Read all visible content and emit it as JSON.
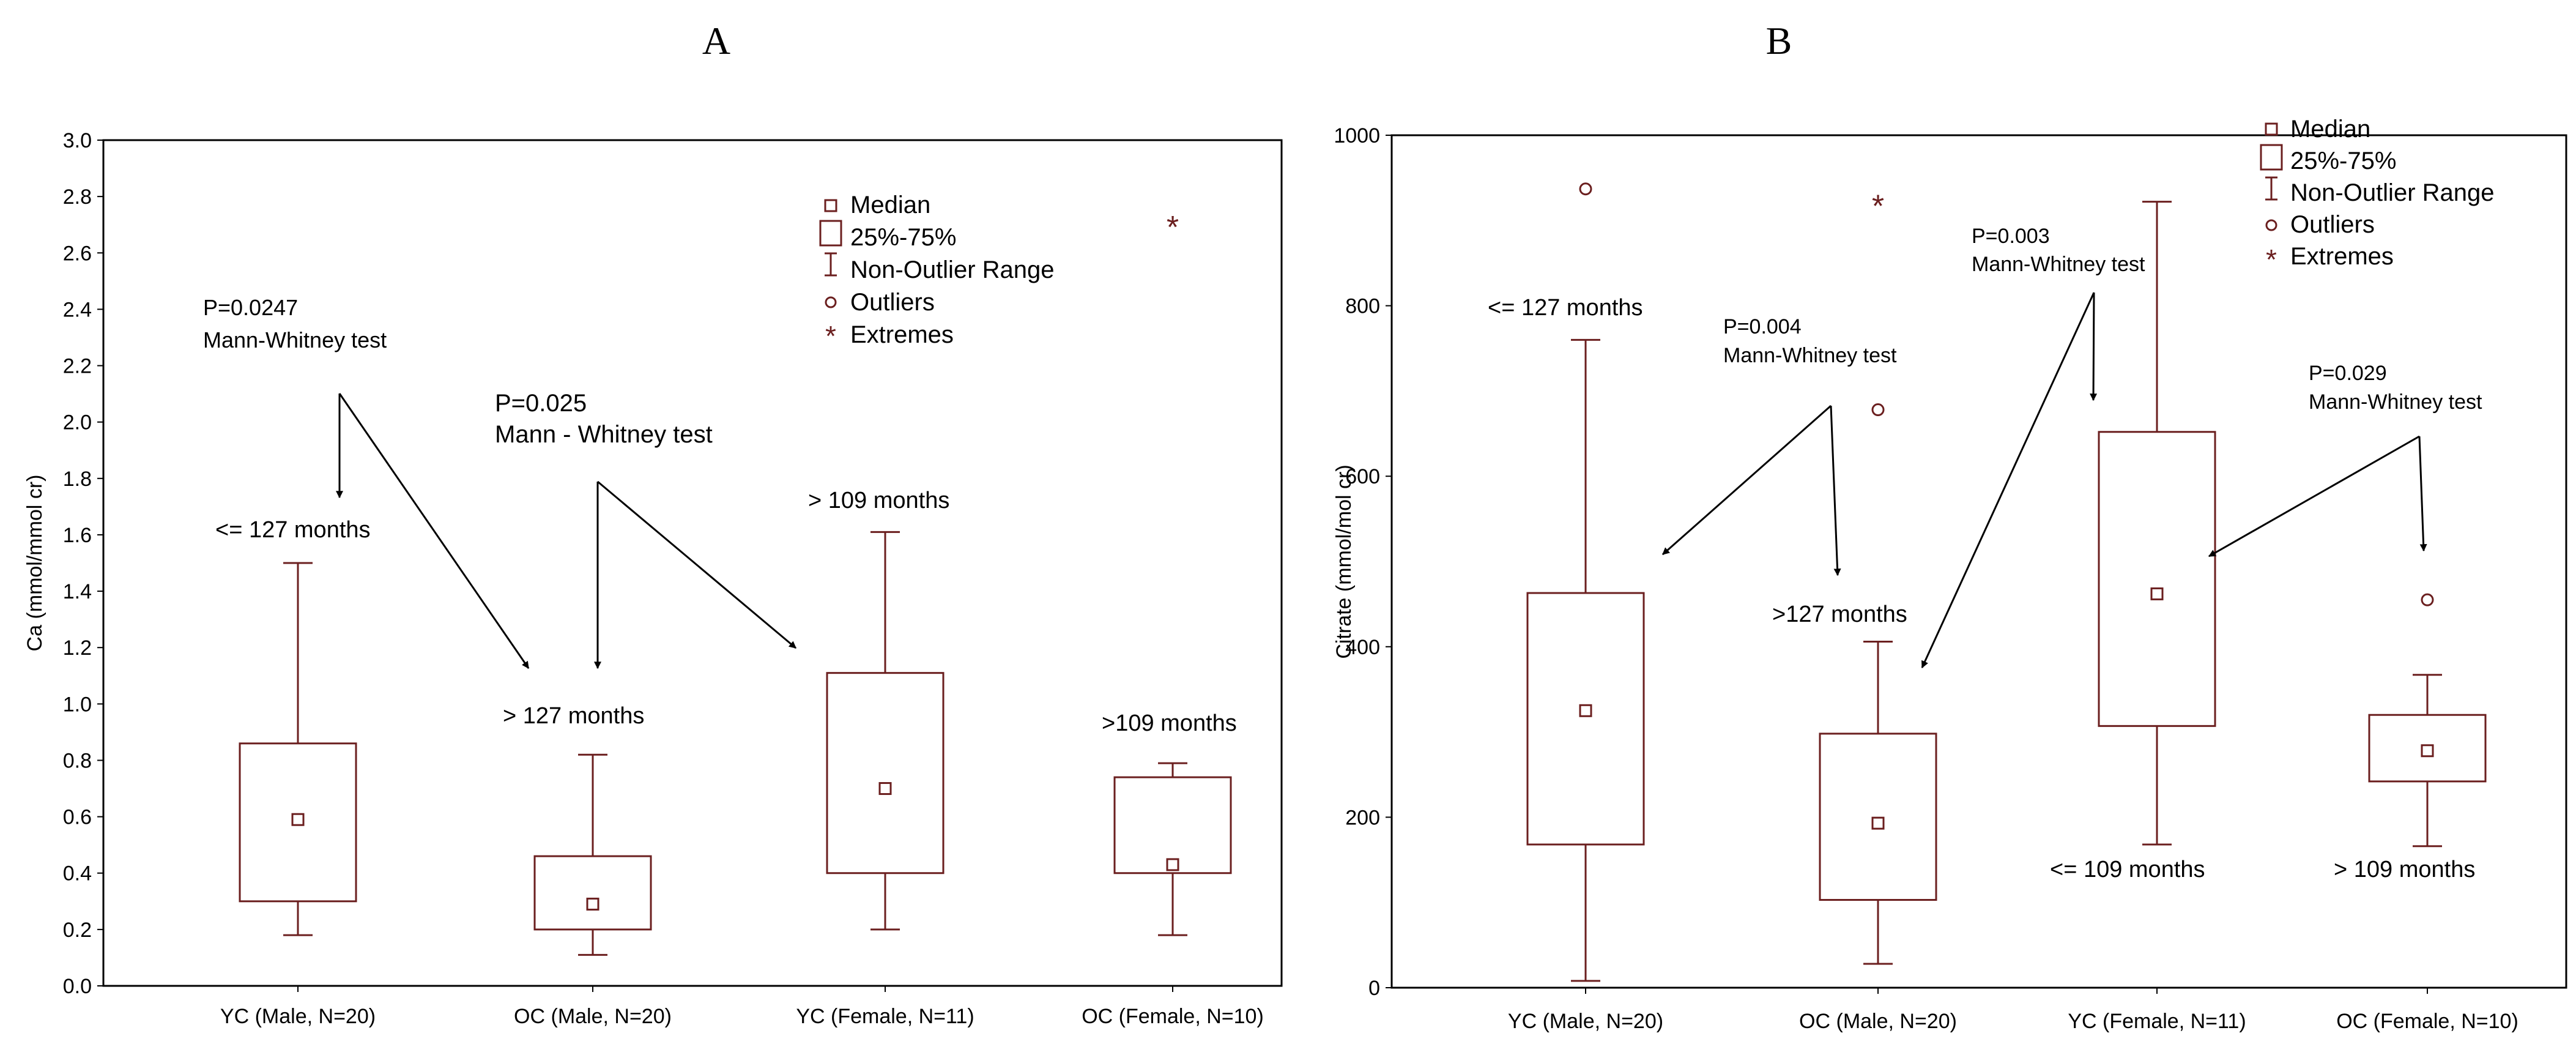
{
  "figure": {
    "panel_a_letter": "A",
    "panel_b_letter": "B"
  },
  "colors": {
    "box": "#6b1f1f",
    "axis": "#000000",
    "arrow": "#000000",
    "text": "#000000"
  },
  "legend": {
    "median": "Median",
    "iqr": "25%-75%",
    "range": "Non-Outlier Range",
    "outliers": "Outliers",
    "extremes": "Extremes"
  },
  "chart_data": [
    {
      "panel": "A",
      "type": "boxplot",
      "ylabel": "Ca (mmol/mmol cr)",
      "ylim": [
        0.0,
        3.0
      ],
      "yticks": [
        "0.0",
        "0.2",
        "0.4",
        "0.6",
        "0.8",
        "1.0",
        "1.2",
        "1.4",
        "1.6",
        "1.8",
        "2.0",
        "2.2",
        "2.4",
        "2.6",
        "2.8",
        "3.0"
      ],
      "categories": [
        "YC (Male, N=20)",
        "OC (Male, N=20)",
        "YC (Female, N=11)",
        "OC (Female, N=10)"
      ],
      "boxes": [
        {
          "median": 0.59,
          "q1": 0.3,
          "q3": 0.86,
          "whisker_low": 0.18,
          "whisker_high": 1.5,
          "outliers": [],
          "extremes": []
        },
        {
          "median": 0.29,
          "q1": 0.2,
          "q3": 0.46,
          "whisker_low": 0.11,
          "whisker_high": 0.82,
          "outliers": [],
          "extremes": []
        },
        {
          "median": 0.7,
          "q1": 0.4,
          "q3": 1.11,
          "whisker_low": 0.2,
          "whisker_high": 1.61,
          "outliers": [],
          "extremes": []
        },
        {
          "median": 0.43,
          "q1": 0.4,
          "q3": 0.74,
          "whisker_low": 0.18,
          "whisker_high": 0.79,
          "outliers": [],
          "extremes": [
            2.7
          ]
        }
      ],
      "annotations": [
        {
          "text": "<= 127 months"
        },
        {
          "text": "> 127 months"
        },
        {
          "text": "> 109 months"
        },
        {
          "text": ">109 months"
        },
        {
          "text": "P=0.0247"
        },
        {
          "text": "Mann-Whitney test"
        },
        {
          "text": "P=0.025"
        },
        {
          "text": "Mann - Whitney test"
        }
      ]
    },
    {
      "panel": "B",
      "type": "boxplot",
      "ylabel": "Citrate (mmol/mol cr)",
      "ylim": [
        0,
        1000
      ],
      "yticks": [
        "0",
        "200",
        "400",
        "600",
        "800",
        "1000"
      ],
      "categories": [
        "YC (Male, N=20)",
        "OC (Male, N=20)",
        "YC (Female, N=11)",
        "OC (Female, N=10)"
      ],
      "boxes": [
        {
          "median": 325,
          "q1": 168,
          "q3": 463,
          "whisker_low": 8,
          "whisker_high": 760,
          "outliers": [
            937
          ],
          "extremes": []
        },
        {
          "median": 193,
          "q1": 103,
          "q3": 298,
          "whisker_low": 28,
          "whisker_high": 406,
          "outliers": [
            678
          ],
          "extremes": [
            920
          ]
        },
        {
          "median": 462,
          "q1": 307,
          "q3": 652,
          "whisker_low": 168,
          "whisker_high": 922,
          "outliers": [],
          "extremes": []
        },
        {
          "median": 278,
          "q1": 242,
          "q3": 320,
          "whisker_low": 166,
          "whisker_high": 367,
          "outliers": [
            455
          ],
          "extremes": []
        }
      ],
      "annotations": [
        {
          "text": "<= 127 months"
        },
        {
          "text": ">127 months"
        },
        {
          "text": "<= 109 months"
        },
        {
          "text": "> 109 months"
        },
        {
          "text": "P=0.004"
        },
        {
          "text": "Mann-Whitney test"
        },
        {
          "text": "P=0.003"
        },
        {
          "text": "Mann-Whitney test"
        },
        {
          "text": "P=0.029"
        },
        {
          "text": "Mann-Whitney test"
        }
      ]
    }
  ]
}
